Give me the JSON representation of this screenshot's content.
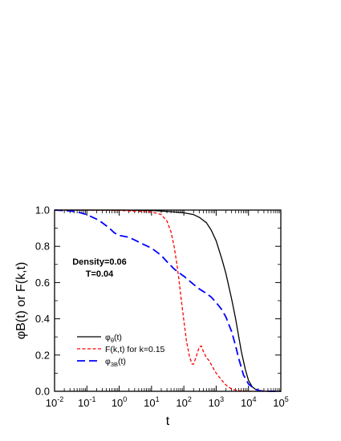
{
  "chart_data": {
    "type": "line",
    "x_scale": "log",
    "xlim": [
      0.01,
      100000
    ],
    "ylim": [
      0.0,
      1.0
    ],
    "xlabel": "t",
    "ylabel": "φB(t) or F(k,t)",
    "xticks": [
      {
        "value": 0.01,
        "base": "10",
        "exp": "-2"
      },
      {
        "value": 0.1,
        "base": "10",
        "exp": "-1"
      },
      {
        "value": 1,
        "base": "10",
        "exp": "0"
      },
      {
        "value": 10,
        "base": "10",
        "exp": "1"
      },
      {
        "value": 100,
        "base": "10",
        "exp": "2"
      },
      {
        "value": 1000,
        "base": "10",
        "exp": "3"
      },
      {
        "value": 10000,
        "base": "10",
        "exp": "4"
      },
      {
        "value": 100000,
        "base": "10",
        "exp": "5"
      }
    ],
    "yticks": [
      {
        "value": 0.0,
        "label": "0.0"
      },
      {
        "value": 0.2,
        "label": "0.2"
      },
      {
        "value": 0.4,
        "label": "0.4"
      },
      {
        "value": 0.6,
        "label": "0.6"
      },
      {
        "value": 0.8,
        "label": "0.8"
      },
      {
        "value": 1.0,
        "label": "1.0"
      }
    ],
    "annotations": [
      "Density=0.06",
      "T=0.04"
    ],
    "legend_placement": "lower-left",
    "series": [
      {
        "name": "φθ(t)",
        "legend_main": "φ",
        "legend_sub": "θ",
        "legend_tail": "(t)",
        "color": "#000000",
        "dash": "solid",
        "x": [
          0.01,
          0.1,
          1,
          10,
          50,
          100,
          200,
          300,
          500,
          700,
          1000,
          1500,
          2000,
          3000,
          4000,
          5000,
          6000,
          8000,
          10000,
          13000,
          16000,
          20000,
          30000,
          50000,
          100000
        ],
        "y": [
          1.0,
          1.0,
          1.0,
          0.998,
          0.99,
          0.985,
          0.975,
          0.96,
          0.93,
          0.89,
          0.83,
          0.73,
          0.65,
          0.51,
          0.4,
          0.3,
          0.22,
          0.12,
          0.06,
          0.025,
          0.012,
          0.005,
          0.001,
          0.0,
          0.0
        ]
      },
      {
        "name": "F(k,t) for k=0.15",
        "legend_main": "F(k,t) for k=0.15",
        "legend_sub": "",
        "legend_tail": "",
        "color": "#ff0000",
        "dash": "short",
        "x": [
          0.01,
          0.1,
          1,
          10,
          20,
          30,
          40,
          50,
          60,
          70,
          80,
          100,
          120,
          150,
          180,
          200,
          250,
          300,
          350,
          400,
          500,
          600,
          800,
          1000,
          1500,
          2000,
          3000,
          5000,
          10000,
          50000,
          100000
        ],
        "y": [
          1.0,
          1.0,
          0.998,
          0.99,
          0.975,
          0.94,
          0.88,
          0.8,
          0.71,
          0.62,
          0.53,
          0.39,
          0.28,
          0.19,
          0.15,
          0.15,
          0.2,
          0.245,
          0.25,
          0.22,
          0.185,
          0.17,
          0.13,
          0.1,
          0.06,
          0.035,
          0.012,
          0.003,
          0.0,
          0.0,
          0.0
        ]
      },
      {
        "name": "φ3B(t)",
        "legend_main": "φ",
        "legend_sub": "3B",
        "legend_tail": "(t)",
        "color": "#0000ff",
        "dash": "long",
        "x": [
          0.01,
          0.03,
          0.05,
          0.1,
          0.2,
          0.3,
          0.5,
          0.7,
          1,
          2,
          3,
          5,
          10,
          20,
          30,
          50,
          70,
          100,
          200,
          300,
          500,
          700,
          1000,
          1500,
          2000,
          3000,
          4000,
          5000,
          7000,
          10000,
          15000,
          20000,
          30000,
          100000
        ],
        "y": [
          1.0,
          0.995,
          0.99,
          0.975,
          0.95,
          0.93,
          0.9,
          0.875,
          0.86,
          0.85,
          0.835,
          0.815,
          0.79,
          0.75,
          0.715,
          0.675,
          0.655,
          0.635,
          0.59,
          0.565,
          0.54,
          0.52,
          0.49,
          0.45,
          0.41,
          0.33,
          0.25,
          0.18,
          0.09,
          0.04,
          0.015,
          0.005,
          0.0,
          0.0
        ]
      }
    ]
  }
}
